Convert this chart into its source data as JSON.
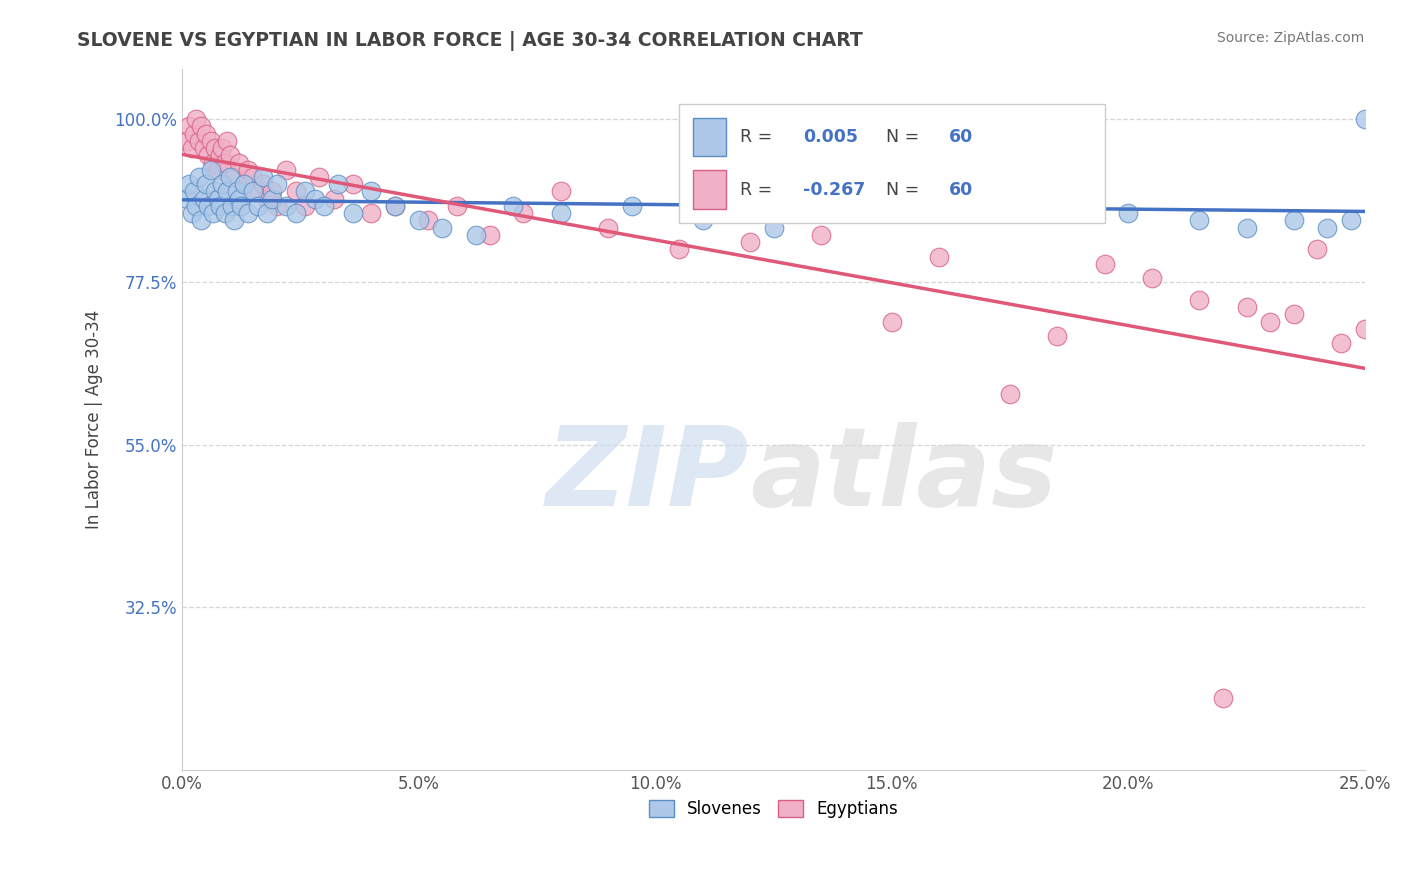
{
  "title": "SLOVENE VS EGYPTIAN IN LABOR FORCE | AGE 30-34 CORRELATION CHART",
  "source_text": "Source: ZipAtlas.com",
  "ylabel": "In Labor Force | Age 30-34",
  "x_tick_labels": [
    "0.0%",
    "5.0%",
    "10.0%",
    "15.0%",
    "20.0%",
    "25.0%"
  ],
  "x_tick_values": [
    0.0,
    5.0,
    10.0,
    15.0,
    20.0,
    25.0
  ],
  "y_tick_labels": [
    "32.5%",
    "55.0%",
    "77.5%",
    "100.0%"
  ],
  "y_tick_values": [
    32.5,
    55.0,
    77.5,
    100.0
  ],
  "xlim": [
    0.0,
    25.0
  ],
  "ylim": [
    10.0,
    107.0
  ],
  "R_slovene": 0.005,
  "N_slovene": 60,
  "R_egyptian": -0.267,
  "N_egyptian": 60,
  "slovene_color": "#adc8e8",
  "slovene_edge_color": "#5b8ec4",
  "slovene_line_color": "#4472c4",
  "egyptian_color": "#f0b0c8",
  "egyptian_edge_color": "#d86080",
  "egyptian_line_color": "#e05878",
  "background_color": "#ffffff",
  "grid_color": "#cccccc",
  "title_color": "#444444",
  "slovene_x": [
    0.1,
    0.15,
    0.2,
    0.25,
    0.3,
    0.35,
    0.4,
    0.45,
    0.5,
    0.55,
    0.6,
    0.65,
    0.7,
    0.75,
    0.8,
    0.85,
    0.9,
    0.95,
    1.0,
    1.05,
    1.1,
    1.15,
    1.2,
    1.25,
    1.3,
    1.4,
    1.5,
    1.6,
    1.7,
    1.8,
    1.9,
    2.0,
    2.2,
    2.4,
    2.6,
    2.8,
    3.0,
    3.3,
    3.6,
    4.0,
    4.5,
    5.0,
    5.5,
    6.2,
    7.0,
    8.0,
    9.5,
    11.0,
    12.5,
    14.0,
    15.5,
    17.0,
    18.5,
    20.0,
    21.5,
    22.5,
    23.5,
    24.2,
    24.7,
    25.0
  ],
  "slovene_y": [
    89,
    91,
    87,
    90,
    88,
    92,
    86,
    89,
    91,
    88,
    93,
    87,
    90,
    89,
    88,
    91,
    87,
    90,
    92,
    88,
    86,
    90,
    89,
    88,
    91,
    87,
    90,
    88,
    92,
    87,
    89,
    91,
    88,
    87,
    90,
    89,
    88,
    91,
    87,
    90,
    88,
    86,
    85,
    84,
    88,
    87,
    88,
    86,
    85,
    87,
    88,
    89,
    88,
    87,
    86,
    85,
    86,
    85,
    86,
    100
  ],
  "egyptian_x": [
    0.1,
    0.15,
    0.2,
    0.25,
    0.3,
    0.35,
    0.4,
    0.45,
    0.5,
    0.55,
    0.6,
    0.65,
    0.7,
    0.75,
    0.8,
    0.85,
    0.9,
    0.95,
    1.0,
    1.1,
    1.2,
    1.3,
    1.4,
    1.5,
    1.6,
    1.7,
    1.8,
    1.9,
    2.0,
    2.2,
    2.4,
    2.6,
    2.9,
    3.2,
    3.6,
    4.0,
    4.5,
    5.2,
    5.8,
    6.5,
    7.2,
    8.0,
    9.0,
    10.5,
    12.0,
    13.5,
    15.0,
    16.0,
    17.5,
    18.5,
    19.5,
    20.5,
    21.5,
    22.0,
    22.5,
    23.0,
    23.5,
    24.0,
    24.5,
    25.0
  ],
  "egyptian_y": [
    97,
    99,
    96,
    98,
    100,
    97,
    99,
    96,
    98,
    95,
    97,
    94,
    96,
    93,
    95,
    96,
    94,
    97,
    95,
    92,
    94,
    91,
    93,
    92,
    90,
    91,
    89,
    90,
    88,
    93,
    90,
    88,
    92,
    89,
    91,
    87,
    88,
    86,
    88,
    84,
    87,
    90,
    85,
    82,
    83,
    84,
    72,
    81,
    62,
    70,
    80,
    78,
    75,
    20,
    74,
    72,
    73,
    82,
    69,
    71
  ]
}
